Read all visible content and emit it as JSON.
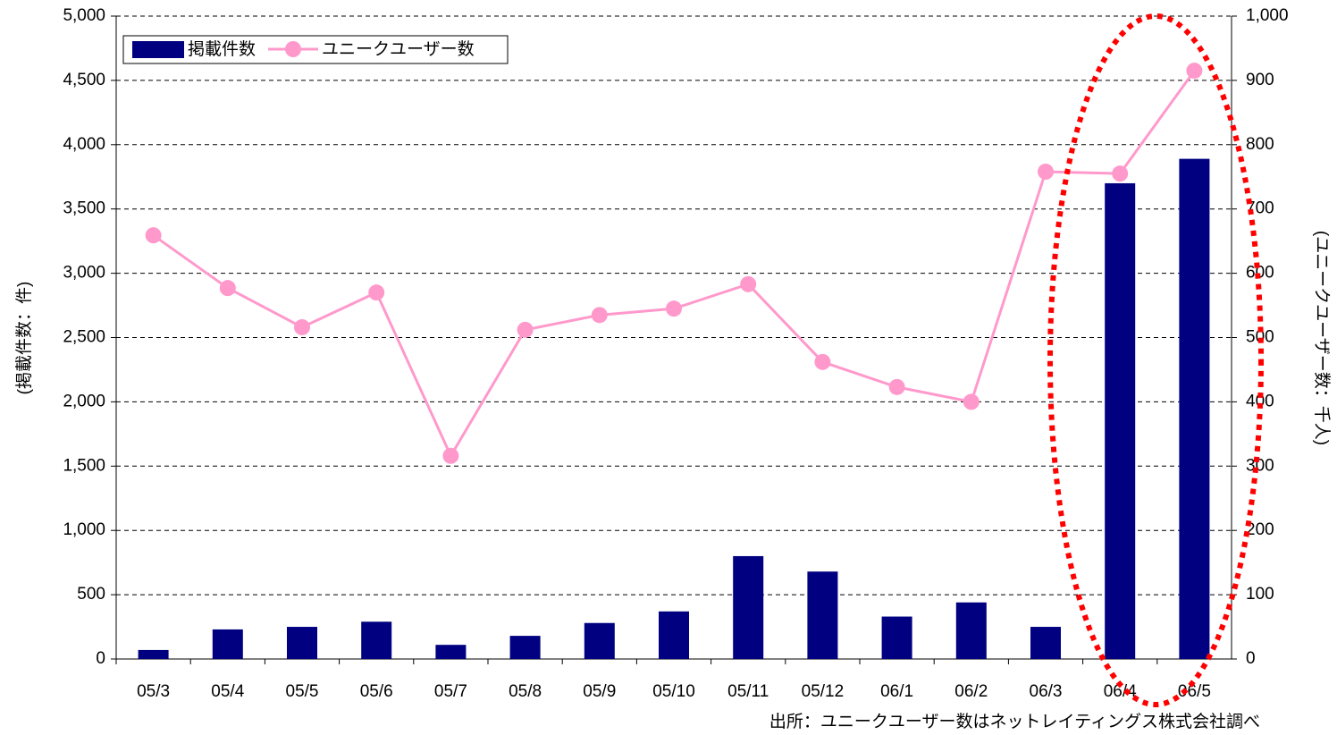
{
  "chart_data": {
    "type": "bar-line",
    "categories": [
      "05/3",
      "05/4",
      "05/5",
      "05/6",
      "05/7",
      "05/8",
      "05/9",
      "05/10",
      "05/11",
      "05/12",
      "06/1",
      "06/2",
      "06/3",
      "06/4",
      "06/5"
    ],
    "series": [
      {
        "name": "掲載件数",
        "type": "bar",
        "color": "#000080",
        "values": [
          70,
          230,
          250,
          290,
          110,
          180,
          280,
          370,
          800,
          680,
          330,
          440,
          250,
          3700,
          3890
        ]
      },
      {
        "name": "ユニークユーザー数",
        "type": "line",
        "axis": "y2",
        "color": "#ff99cc",
        "values": [
          659,
          577,
          516,
          570,
          316,
          512,
          535,
          545,
          583,
          462,
          423,
          400,
          758,
          755,
          915
        ]
      }
    ],
    "ylabel": "(掲載件数：件)",
    "y2label": "(ユニークユーザー数：千人)",
    "source": "出所：ユニークユーザー数はネットレイティングス株式会社調べ",
    "ylim": [
      0,
      5000
    ],
    "yticks": [
      0,
      {
        "value": 500,
        "label": "500"
      },
      {
        "value": 1000,
        "label": "1,000"
      },
      {
        "value": 1500,
        "label": "1,500"
      },
      {
        "value": 2000,
        "label": "2,000"
      },
      {
        "value": 2500,
        "label": "2,500"
      },
      {
        "value": 3000,
        "label": "3,000"
      },
      {
        "value": 3500,
        "label": "3,500"
      },
      {
        "value": 4000,
        "label": "4,000"
      },
      {
        "value": 4500,
        "label": "4,500"
      },
      {
        "value": 5000,
        "label": "5,000"
      }
    ],
    "y2lim": [
      0,
      1000
    ],
    "y2ticks": [
      0,
      100,
      200,
      300,
      400,
      500,
      600,
      700,
      800,
      900,
      {
        "value": 1000,
        "label": "1,000"
      }
    ],
    "grid": true
  }
}
